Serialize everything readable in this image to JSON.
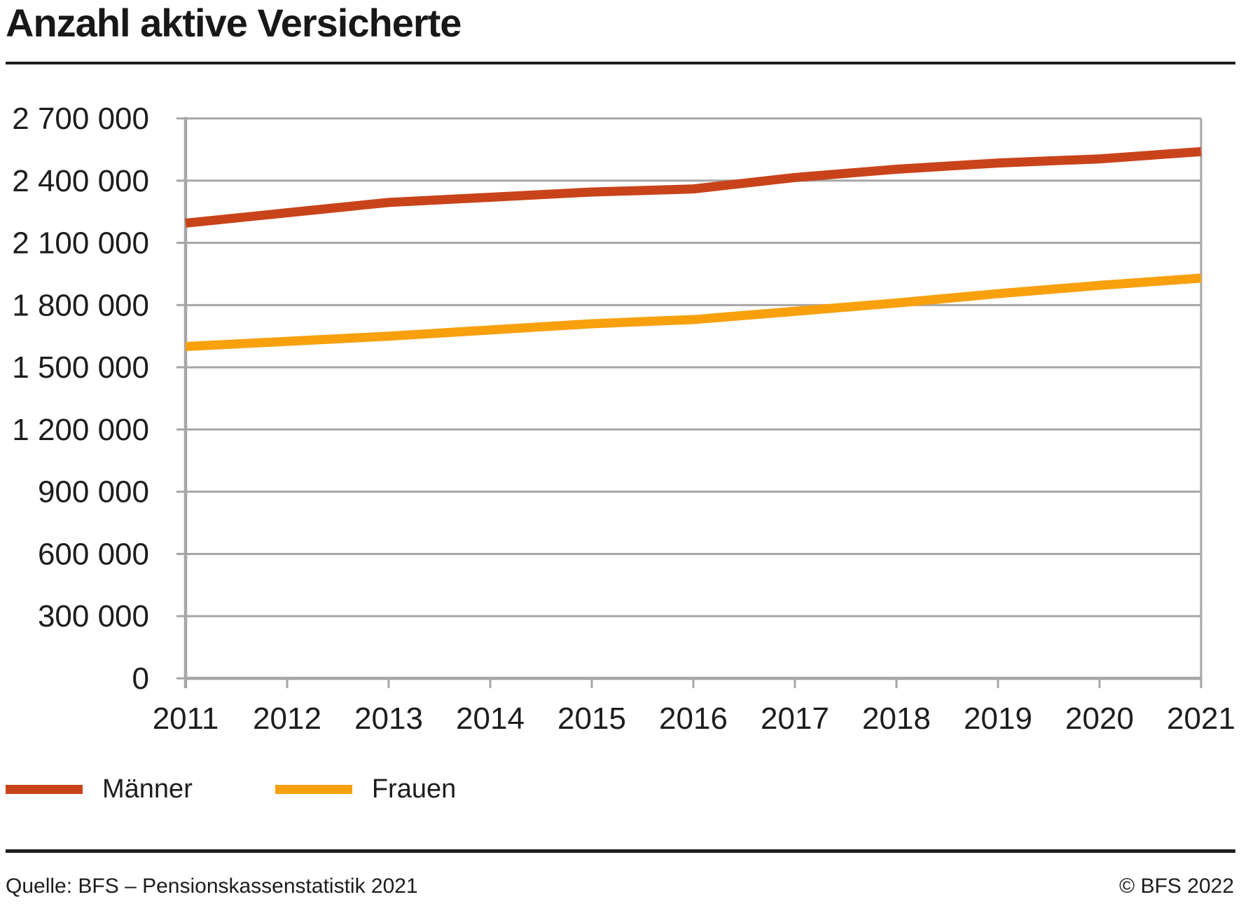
{
  "title": "Anzahl aktive Versicherte",
  "chart_data": {
    "type": "line",
    "title": "Anzahl aktive Versicherte",
    "xlabel": "",
    "ylabel": "",
    "x": [
      2011,
      2012,
      2013,
      2014,
      2015,
      2016,
      2017,
      2018,
      2019,
      2020,
      2021
    ],
    "series": [
      {
        "name": "Männer",
        "color": "#c9431a",
        "values": [
          2195000,
          2245000,
          2295000,
          2320000,
          2345000,
          2360000,
          2415000,
          2455000,
          2485000,
          2505000,
          2540000
        ]
      },
      {
        "name": "Frauen",
        "color": "#f9a00d",
        "values": [
          1600000,
          1625000,
          1650000,
          1680000,
          1710000,
          1730000,
          1770000,
          1810000,
          1855000,
          1895000,
          1930000
        ]
      }
    ],
    "ylim": [
      0,
      2700000
    ],
    "yticks": {
      "values": [
        0,
        300000,
        600000,
        900000,
        1200000,
        1500000,
        1800000,
        2100000,
        2400000,
        2700000
      ],
      "labels": [
        "0",
        "300 000",
        "600 000",
        "900 000",
        "1 200 000",
        "1 500 000",
        "1 800 000",
        "2 100 000",
        "2 400 000",
        "2 700 000"
      ]
    },
    "grid": "horizontal",
    "grid_color": "#a6a6a6",
    "axis_color": "#a6a6a6",
    "tick_label_color": "#1d1d1b",
    "legend_position": "bottom-left"
  },
  "footer": {
    "source": "Quelle: BFS – Pensionskassenstatistik 2021",
    "copyright": "© BFS 2022"
  }
}
